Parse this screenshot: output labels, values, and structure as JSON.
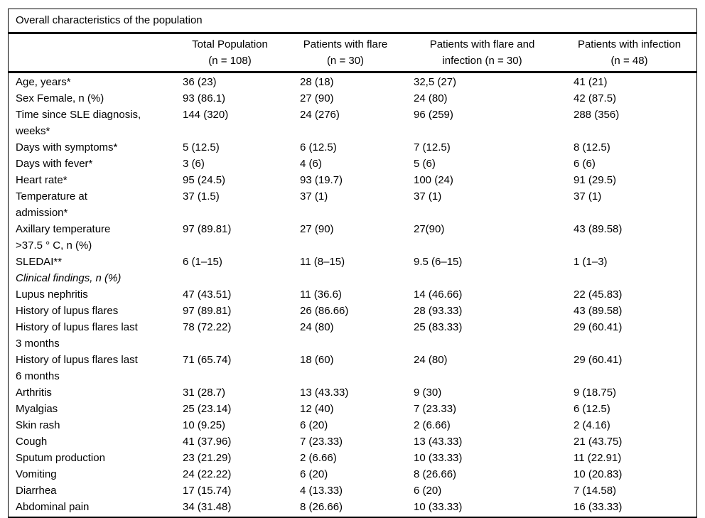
{
  "table": {
    "title": "Overall characteristics of the population",
    "columns": [
      "",
      "Total Population\n(n = 108)",
      "Patients with flare\n(n = 30)",
      "Patients with flare and\ninfection (n = 30)",
      "Patients with infection\n(n = 48)"
    ],
    "rows": [
      {
        "label": "Age, years*",
        "section": false,
        "values": [
          "36 (23)",
          "28 (18)",
          "32,5 (27)",
          "41 (21)"
        ]
      },
      {
        "label": "Sex Female, n (%)",
        "section": false,
        "values": [
          "93 (86.1)",
          "27 (90)",
          "24 (80)",
          "42 (87.5)"
        ]
      },
      {
        "label": "Time since SLE diagnosis,\nweeks*",
        "section": false,
        "values": [
          "144 (320)",
          "24 (276)",
          "96 (259)",
          "288 (356)"
        ]
      },
      {
        "label": "Days with symptoms*",
        "section": false,
        "values": [
          "5 (12.5)",
          "6 (12.5)",
          "7 (12.5)",
          "8 (12.5)"
        ]
      },
      {
        "label": "Days with fever*",
        "section": false,
        "values": [
          "3 (6)",
          "4 (6)",
          "5 (6)",
          "6 (6)"
        ]
      },
      {
        "label": "Heart rate*",
        "section": false,
        "values": [
          "95 (24.5)",
          "93 (19.7)",
          "100 (24)",
          "91 (29.5)"
        ]
      },
      {
        "label": "Temperature at\nadmission*",
        "section": false,
        "values": [
          "37 (1.5)",
          "37 (1)",
          "37 (1)",
          "37 (1)"
        ]
      },
      {
        "label": "Axillary temperature\n>37.5 ° C, n (%)",
        "section": false,
        "values": [
          "97 (89.81)",
          "27 (90)",
          "27(90)",
          "43 (89.58)"
        ]
      },
      {
        "label": "SLEDAI**",
        "section": false,
        "values": [
          "6 (1–15)",
          "11 (8–15)",
          "9.5 (6–15)",
          "1 (1–3)"
        ]
      },
      {
        "label": "Clinical findings, n (%)",
        "section": true,
        "values": [
          "",
          "",
          "",
          ""
        ]
      },
      {
        "label": "Lupus nephritis",
        "section": false,
        "values": [
          "47 (43.51)",
          "11 (36.6)",
          "14 (46.66)",
          "22 (45.83)"
        ]
      },
      {
        "label": "History of lupus flares",
        "section": false,
        "values": [
          "97 (89.81)",
          "26 (86.66)",
          "28 (93.33)",
          "43 (89.58)"
        ]
      },
      {
        "label": "History of lupus flares last\n3 months",
        "section": false,
        "values": [
          "78 (72.22)",
          "24 (80)",
          "25 (83.33)",
          "29 (60.41)"
        ]
      },
      {
        "label": "History of lupus flares last\n6 months",
        "section": false,
        "values": [
          "71 (65.74)",
          "18 (60)",
          "24 (80)",
          "29 (60.41)"
        ]
      },
      {
        "label": "Arthritis",
        "section": false,
        "values": [
          "31 (28.7)",
          "13 (43.33)",
          "9 (30)",
          "9 (18.75)"
        ]
      },
      {
        "label": "Myalgias",
        "section": false,
        "values": [
          "25 (23.14)",
          "12 (40)",
          "7 (23.33)",
          "6 (12.5)"
        ]
      },
      {
        "label": "Skin rash",
        "section": false,
        "values": [
          "10 (9.25)",
          "6 (20)",
          "2 (6.66)",
          "2 (4.16)"
        ]
      },
      {
        "label": "Cough",
        "section": false,
        "values": [
          "41 (37.96)",
          "7 (23.33)",
          "13 (43.33)",
          "21 (43.75)"
        ]
      },
      {
        "label": "Sputum production",
        "section": false,
        "values": [
          "23 (21.29)",
          "2 (6.66)",
          "10 (33.33)",
          "11 (22.91)"
        ]
      },
      {
        "label": "Vomiting",
        "section": false,
        "values": [
          "24 (22.22)",
          "6 (20)",
          "8 (26.66)",
          "10 (20.83)"
        ]
      },
      {
        "label": "Diarrhea",
        "section": false,
        "values": [
          "17 (15.74)",
          "4 (13.33)",
          "6 (20)",
          "7 (14.58)"
        ]
      },
      {
        "label": "Abdominal pain",
        "section": false,
        "values": [
          "34 (31.48)",
          "8 (26.66)",
          "10 (33.33)",
          "16 (33.33)"
        ]
      }
    ]
  }
}
